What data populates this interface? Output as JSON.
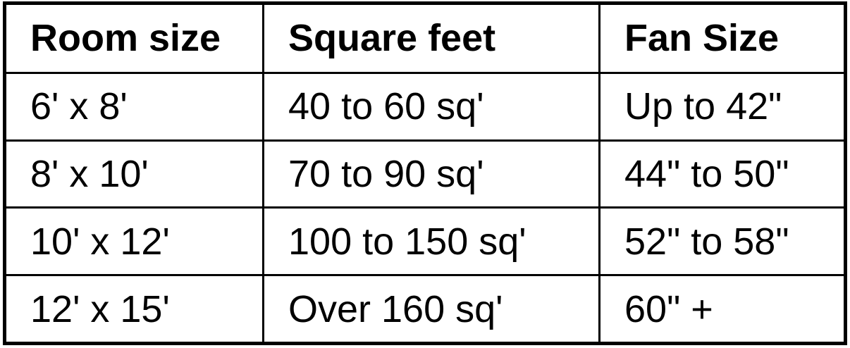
{
  "table": {
    "headers": [
      "Room size",
      "Square feet",
      "Fan Size"
    ],
    "rows": [
      [
        "6' x 8'",
        "40 to 60 sq'",
        "Up to 42\""
      ],
      [
        "8' x 10'",
        "70 to 90 sq'",
        "44\" to 50\""
      ],
      [
        "10' x 12'",
        "100 to 150 sq'",
        "52\" to 58\""
      ],
      [
        "12' x 15'",
        "Over 160 sq'",
        "60\" +"
      ]
    ]
  }
}
